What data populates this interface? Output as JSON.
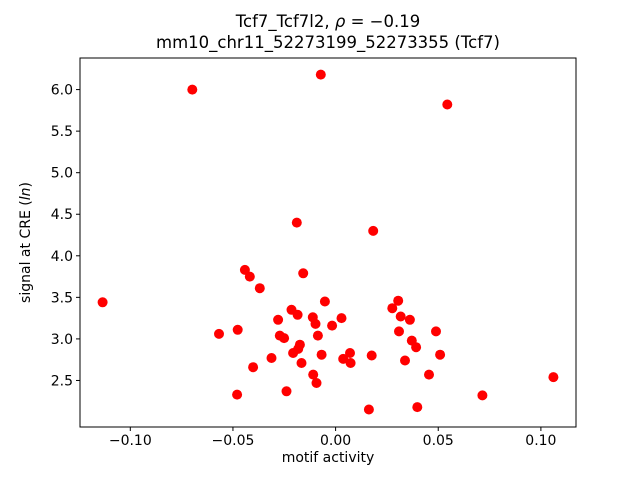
{
  "title": {
    "prefix": "Tcf7_Tcf7l2, ",
    "rho": "ρ",
    "suffix": " = −0.19"
  },
  "subtitle": "mm10_chr11_52273199_52273355 (Tcf7)",
  "ylabel_parts": {
    "prefix": "signal at CRE (",
    "italic": "ln",
    "suffix": ")"
  },
  "chart_data": {
    "type": "scatter",
    "title": "Tcf7_Tcf7l2, ρ = −0.19",
    "subtitle": "mm10_chr11_52273199_52273355 (Tcf7)",
    "xlabel": "motif activity",
    "ylabel": "signal at CRE (ln)",
    "legend": null,
    "grid": false,
    "marker": {
      "color": "#ff0000",
      "radius_px": 5
    },
    "axes": {
      "xlim": [
        -0.1245,
        0.1171
      ],
      "ylim": [
        1.94,
        6.38
      ],
      "xticks": [
        {
          "value": -0.1,
          "label": "−0.10"
        },
        {
          "value": -0.05,
          "label": "−0.05"
        },
        {
          "value": 0.0,
          "label": "0.00"
        },
        {
          "value": 0.05,
          "label": "0.05"
        },
        {
          "value": 0.1,
          "label": "0.10"
        }
      ],
      "yticks": [
        {
          "value": 2.5,
          "label": "2.5"
        },
        {
          "value": 3.0,
          "label": "3.0"
        },
        {
          "value": 3.5,
          "label": "3.5"
        },
        {
          "value": 4.0,
          "label": "4.0"
        },
        {
          "value": 4.5,
          "label": "4.5"
        },
        {
          "value": 5.0,
          "label": "5.0"
        },
        {
          "value": 5.5,
          "label": "5.5"
        },
        {
          "value": 6.0,
          "label": "6.0"
        }
      ]
    },
    "points": [
      [
        -0.1135,
        3.44
      ],
      [
        -0.0698,
        6.0
      ],
      [
        -0.0072,
        6.18
      ],
      [
        0.0544,
        5.82
      ],
      [
        0.0183,
        4.3
      ],
      [
        -0.0189,
        4.4
      ],
      [
        -0.0442,
        3.83
      ],
      [
        -0.0418,
        3.75
      ],
      [
        -0.0369,
        3.61
      ],
      [
        -0.0158,
        3.79
      ],
      [
        -0.0568,
        3.06
      ],
      [
        -0.0477,
        3.11
      ],
      [
        -0.048,
        2.33
      ],
      [
        -0.0052,
        3.45
      ],
      [
        -0.0215,
        3.35
      ],
      [
        -0.0185,
        3.29
      ],
      [
        -0.028,
        3.23
      ],
      [
        -0.0111,
        3.26
      ],
      [
        -0.0098,
        3.18
      ],
      [
        0.0029,
        3.25
      ],
      [
        -0.0017,
        3.16
      ],
      [
        -0.0272,
        3.04
      ],
      [
        -0.0251,
        3.01
      ],
      [
        -0.0086,
        3.04
      ],
      [
        -0.0174,
        2.93
      ],
      [
        -0.0207,
        2.83
      ],
      [
        -0.0182,
        2.88
      ],
      [
        -0.0312,
        2.77
      ],
      [
        -0.0166,
        2.71
      ],
      [
        -0.0402,
        2.66
      ],
      [
        -0.0068,
        2.81
      ],
      [
        0.0037,
        2.76
      ],
      [
        0.007,
        2.83
      ],
      [
        0.0073,
        2.71
      ],
      [
        0.0176,
        2.8
      ],
      [
        -0.0109,
        2.57
      ],
      [
        -0.0093,
        2.47
      ],
      [
        -0.0239,
        2.37
      ],
      [
        0.0305,
        3.46
      ],
      [
        0.0276,
        3.37
      ],
      [
        0.0317,
        3.27
      ],
      [
        0.0362,
        3.23
      ],
      [
        0.0309,
        3.09
      ],
      [
        0.0489,
        3.09
      ],
      [
        0.0371,
        2.98
      ],
      [
        0.0392,
        2.9
      ],
      [
        0.0338,
        2.74
      ],
      [
        0.0509,
        2.81
      ],
      [
        0.0455,
        2.57
      ],
      [
        0.0398,
        2.18
      ],
      [
        0.0162,
        2.15
      ],
      [
        0.1061,
        2.54
      ],
      [
        0.0715,
        2.32
      ]
    ]
  }
}
